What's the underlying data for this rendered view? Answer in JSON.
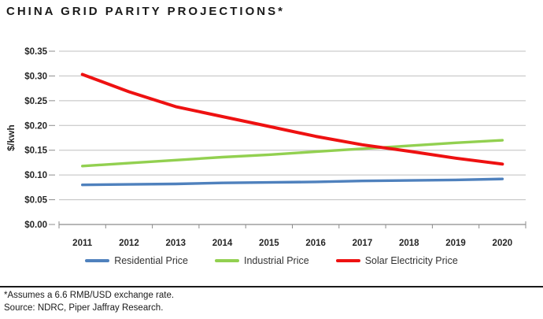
{
  "title": "CHINA GRID PARITY PROJECTIONS*",
  "footnote": {
    "note": "*Assumes a 6.6 RMB/USD exchange rate.",
    "source": "Source: NDRC, Piper Jaffray Research."
  },
  "colors": {
    "gridline": "#BFBFBF",
    "axis": "#8C8C8C",
    "tick_text": "#262626",
    "residential_blue": "#4F81BD",
    "industrial_green": "#92D050",
    "solar_red": "#EE1111"
  },
  "chart_data": {
    "type": "line",
    "title": "",
    "xlabel": "",
    "ylabel": "$/kwh",
    "ylim": [
      0,
      0.35
    ],
    "ytick_step": 0.05,
    "grid": "horizontal",
    "legend_position": "bottom",
    "categories": [
      "2011",
      "2012",
      "2013",
      "2014",
      "2015",
      "2016",
      "2017",
      "2018",
      "2019",
      "2020"
    ],
    "y_ticks": [
      {
        "value": 0.0,
        "label": "$0.00"
      },
      {
        "value": 0.05,
        "label": "$0.05"
      },
      {
        "value": 0.1,
        "label": "$0.10"
      },
      {
        "value": 0.15,
        "label": "$0.15"
      },
      {
        "value": 0.2,
        "label": "$0.20"
      },
      {
        "value": 0.25,
        "label": "$0.25"
      },
      {
        "value": 0.3,
        "label": "$0.30"
      },
      {
        "value": 0.35,
        "label": "$0.35"
      }
    ],
    "series": [
      {
        "name": "Residential Price",
        "color": "#4F81BD",
        "values": [
          0.08,
          0.081,
          0.082,
          0.084,
          0.085,
          0.086,
          0.088,
          0.089,
          0.09,
          0.092
        ]
      },
      {
        "name": "Industrial Price",
        "color": "#92D050",
        "values": [
          0.118,
          0.124,
          0.13,
          0.136,
          0.141,
          0.147,
          0.153,
          0.159,
          0.165,
          0.17
        ]
      },
      {
        "name": "Solar Electricity Price",
        "color": "#EE1111",
        "values": [
          0.303,
          0.268,
          0.238,
          0.218,
          0.198,
          0.178,
          0.161,
          0.148,
          0.134,
          0.122
        ]
      }
    ]
  }
}
